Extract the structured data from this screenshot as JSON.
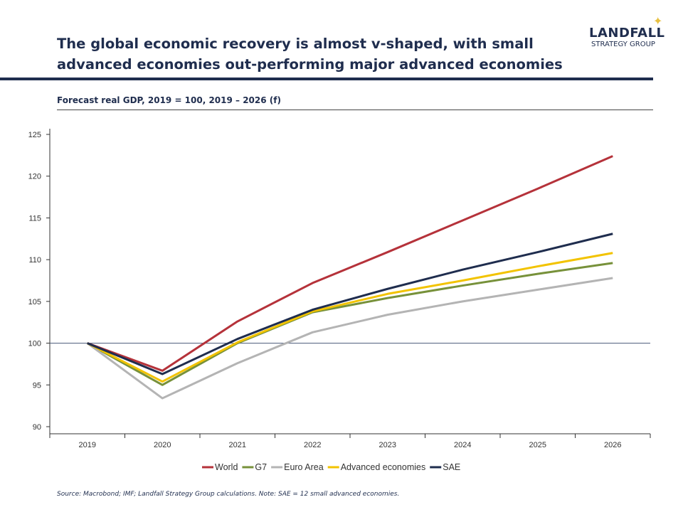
{
  "header": {
    "title": "The global economic recovery is almost v-shaped, with small advanced economies out-performing major advanced economies",
    "logo_line1": "LANDFALL",
    "logo_line2": "STRATEGY GROUP"
  },
  "footer": {
    "source": "Source: Macrobond;  IMF; Landfall Strategy Group calculations. Note: SAE = 12 small advanced economies."
  },
  "chart_data": {
    "type": "line",
    "title": "Forecast real GDP, 2019 = 100,  2019 – 2026 (f)",
    "categories": [
      "2019",
      "2020",
      "2021",
      "2022",
      "2023",
      "2024",
      "2025",
      "2026"
    ],
    "ylim": [
      90,
      125
    ],
    "yticks": [
      90,
      95,
      100,
      105,
      110,
      115,
      120,
      125
    ],
    "reference_line": 100,
    "legend_position": "bottom",
    "grid": false,
    "series": [
      {
        "name": "World",
        "color": "#b5323a",
        "values": [
          100,
          96.7,
          102.6,
          107.2,
          110.9,
          114.7,
          118.5,
          122.4
        ]
      },
      {
        "name": "G7",
        "color": "#77913a",
        "values": [
          100,
          95.0,
          100.0,
          103.7,
          105.4,
          106.9,
          108.3,
          109.6
        ]
      },
      {
        "name": "Euro Area",
        "color": "#b4b4b4",
        "values": [
          100,
          93.4,
          97.6,
          101.3,
          103.4,
          105.0,
          106.4,
          107.8
        ]
      },
      {
        "name": "Advanced economies",
        "color": "#f2c300",
        "values": [
          100,
          95.4,
          100.1,
          103.8,
          105.9,
          107.5,
          109.2,
          110.8
        ]
      },
      {
        "name": "SAE",
        "color": "#1f2d4e",
        "values": [
          100,
          96.3,
          100.5,
          104.0,
          106.5,
          108.8,
          110.9,
          113.1
        ]
      }
    ]
  }
}
